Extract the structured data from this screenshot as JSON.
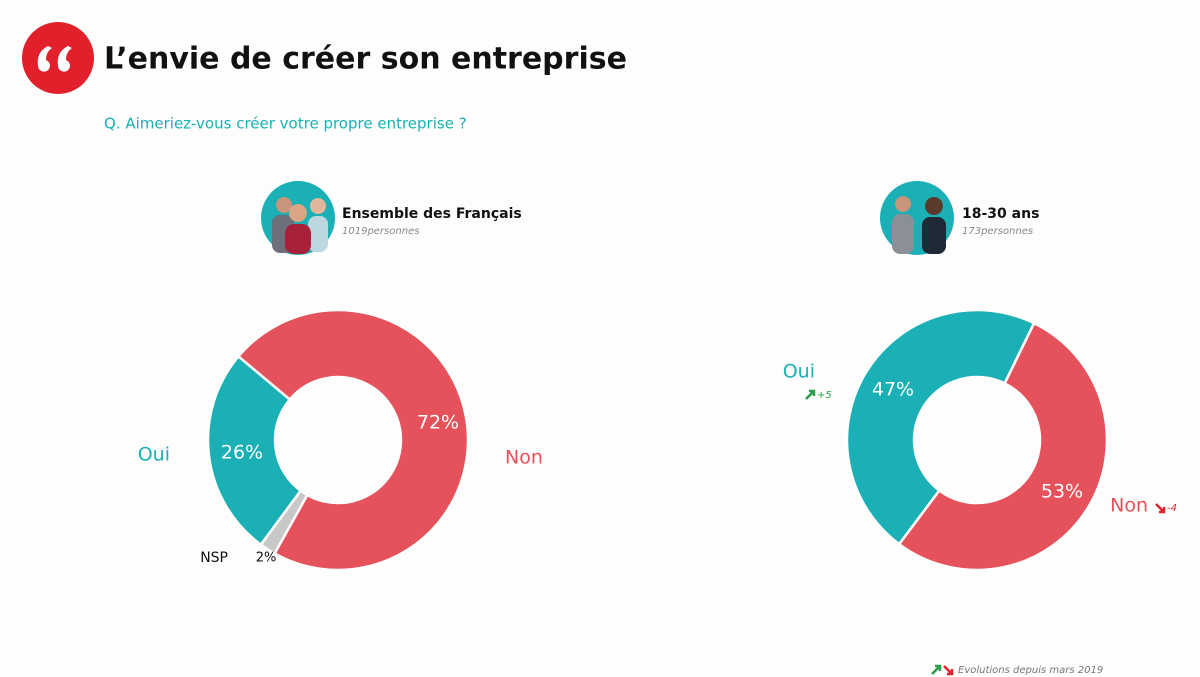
{
  "title": "L’envie de créer son entreprise",
  "question": "Q. Aimeriez-vous créer votre propre entreprise ?",
  "footnote": "Evolutions depuis mars 2019",
  "chart_data": [
    {
      "type": "donut",
      "title": "Ensemble des Français",
      "subtitle": "1019personnes",
      "categories": [
        "Non",
        "NSP",
        "Oui"
      ],
      "values": [
        72,
        2,
        26
      ],
      "value_labels": [
        "72%",
        "2%",
        "26%"
      ],
      "colors": [
        "#e5525b",
        "#c8c8c8",
        "#1ab0b5"
      ]
    },
    {
      "type": "donut",
      "title": "18-30 ans",
      "subtitle": "173personnes",
      "categories": [
        "Non",
        "Oui"
      ],
      "values": [
        53,
        47
      ],
      "value_labels": [
        "53%",
        "47%"
      ],
      "colors": [
        "#e5525b",
        "#1ab0b5"
      ],
      "changes": [
        -4,
        5
      ],
      "change_labels": [
        "-4",
        "+5"
      ]
    }
  ]
}
